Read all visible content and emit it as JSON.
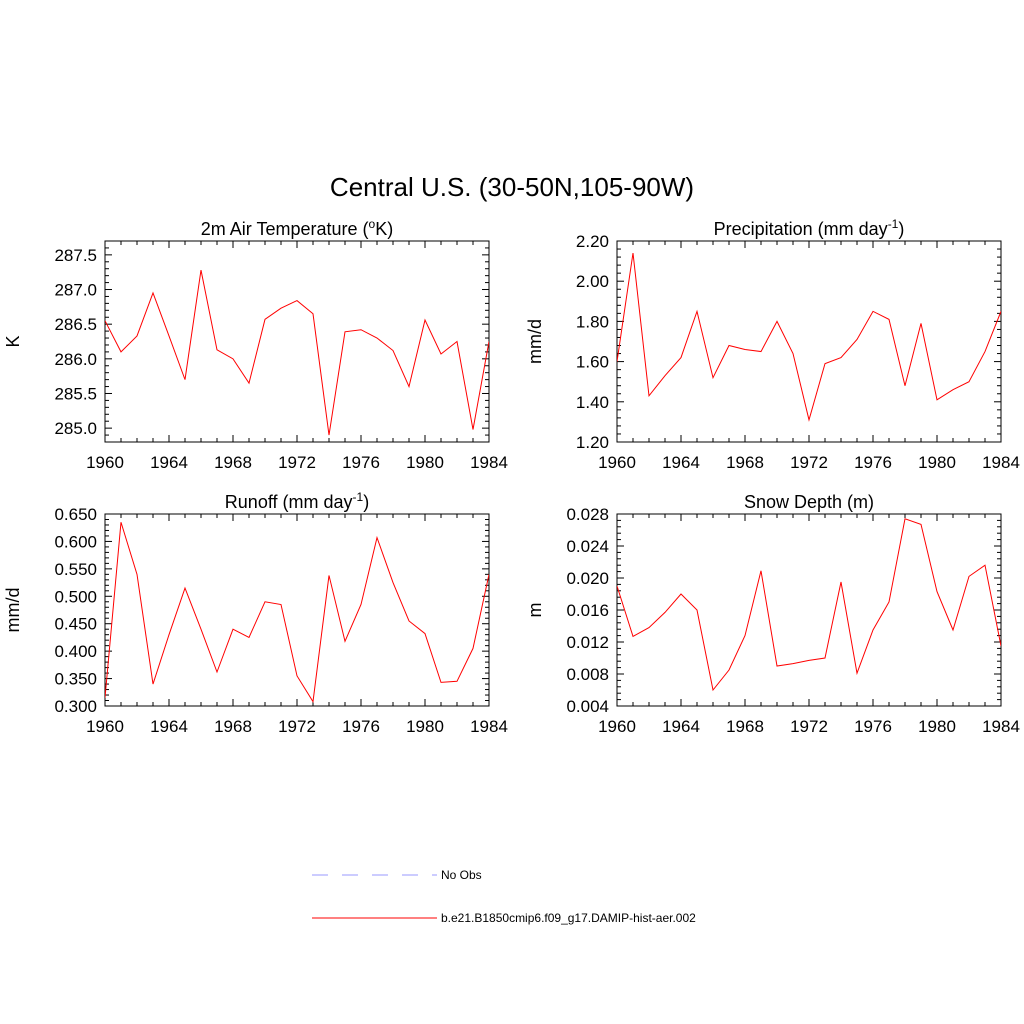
{
  "title": "Central U.S. (30-50N,105-90W)",
  "colors": {
    "model": "#ff0000",
    "obs": "#9999ff",
    "axis": "#000000"
  },
  "legend": [
    {
      "label": "No Obs",
      "color": "#9999ff",
      "dash": "dashed"
    },
    {
      "label": "b.e21.B1850cmip6.f09_g17.DAMIP-hist-aer.002",
      "color": "#ff0000",
      "dash": "solid"
    }
  ],
  "chart_data": [
    {
      "type": "line",
      "title": "2m Air Temperature (oK)",
      "title_parts": [
        "2m Air Temperature (",
        "o",
        "K)"
      ],
      "ylabel": "K",
      "xlim": [
        1960,
        1984
      ],
      "xticks": [
        "1960",
        "1964",
        "1968",
        "1972",
        "1976",
        "1980",
        "1984"
      ],
      "ylim": [
        284.8,
        287.7
      ],
      "yticks": [
        "285.0",
        "285.5",
        "286.0",
        "286.5",
        "287.0",
        "287.5"
      ],
      "grid": false,
      "x": [
        1960,
        1961,
        1962,
        1963,
        1964,
        1965,
        1966,
        1967,
        1968,
        1969,
        1970,
        1971,
        1972,
        1973,
        1974,
        1975,
        1976,
        1977,
        1978,
        1979,
        1980,
        1981,
        1982,
        1983,
        1984
      ],
      "series": [
        {
          "values": [
            286.55,
            286.1,
            286.33,
            286.95,
            286.33,
            285.7,
            287.28,
            286.13,
            286.0,
            285.65,
            286.57,
            286.73,
            286.84,
            286.65,
            284.9,
            286.39,
            286.42,
            286.3,
            286.12,
            285.6,
            286.56,
            286.07,
            286.25,
            284.98,
            286.25
          ]
        }
      ]
    },
    {
      "type": "line",
      "title": "Precipitation (mm day-1)",
      "title_parts": [
        "Precipitation (mm day",
        "-1",
        ")"
      ],
      "ylabel": "mm/d",
      "xlim": [
        1960,
        1984
      ],
      "xticks": [
        "1960",
        "1964",
        "1968",
        "1972",
        "1976",
        "1980",
        "1984"
      ],
      "ylim": [
        1.2,
        2.2
      ],
      "yticks": [
        "1.20",
        "1.40",
        "1.60",
        "1.80",
        "2.00",
        "2.20"
      ],
      "grid": false,
      "x": [
        1960,
        1961,
        1962,
        1963,
        1964,
        1965,
        1966,
        1967,
        1968,
        1969,
        1970,
        1971,
        1972,
        1973,
        1974,
        1975,
        1976,
        1977,
        1978,
        1979,
        1980,
        1981,
        1982,
        1983,
        1984
      ],
      "series": [
        {
          "values": [
            1.6,
            2.14,
            1.43,
            1.53,
            1.62,
            1.85,
            1.52,
            1.68,
            1.66,
            1.65,
            1.8,
            1.64,
            1.31,
            1.59,
            1.62,
            1.71,
            1.85,
            1.81,
            1.48,
            1.79,
            1.41,
            1.46,
            1.5,
            1.65,
            1.85
          ]
        }
      ]
    },
    {
      "type": "line",
      "title": "Runoff (mm day-1)",
      "title_parts": [
        "Runoff (mm day",
        "-1",
        ")"
      ],
      "ylabel": "mm/d",
      "xlim": [
        1960,
        1984
      ],
      "xticks": [
        "1960",
        "1964",
        "1968",
        "1972",
        "1976",
        "1980",
        "1984"
      ],
      "ylim": [
        0.3,
        0.65
      ],
      "yticks": [
        "0.300",
        "0.350",
        "0.400",
        "0.450",
        "0.500",
        "0.550",
        "0.600",
        "0.650"
      ],
      "grid": false,
      "x": [
        1960,
        1961,
        1962,
        1963,
        1964,
        1965,
        1966,
        1967,
        1968,
        1969,
        1970,
        1971,
        1972,
        1973,
        1974,
        1975,
        1976,
        1977,
        1978,
        1979,
        1980,
        1981,
        1982,
        1983,
        1984
      ],
      "series": [
        {
          "values": [
            0.315,
            0.635,
            0.54,
            0.34,
            0.43,
            0.515,
            0.44,
            0.362,
            0.44,
            0.425,
            0.49,
            0.485,
            0.355,
            0.308,
            0.538,
            0.418,
            0.485,
            0.607,
            0.525,
            0.455,
            0.432,
            0.343,
            0.345,
            0.405,
            0.54
          ]
        }
      ]
    },
    {
      "type": "line",
      "title": "Snow Depth (m)",
      "title_parts": [
        "Snow Depth (m)"
      ],
      "ylabel": "m",
      "xlim": [
        1960,
        1984
      ],
      "xticks": [
        "1960",
        "1964",
        "1968",
        "1972",
        "1976",
        "1980",
        "1984"
      ],
      "ylim": [
        0.004,
        0.028
      ],
      "yticks": [
        "0.004",
        "0.008",
        "0.012",
        "0.016",
        "0.020",
        "0.024",
        "0.028"
      ],
      "grid": false,
      "x": [
        1960,
        1961,
        1962,
        1963,
        1964,
        1965,
        1966,
        1967,
        1968,
        1969,
        1970,
        1971,
        1972,
        1973,
        1974,
        1975,
        1976,
        1977,
        1978,
        1979,
        1980,
        1981,
        1982,
        1983,
        1984
      ],
      "series": [
        {
          "values": [
            0.019,
            0.0127,
            0.0138,
            0.0157,
            0.018,
            0.016,
            0.006,
            0.0085,
            0.0128,
            0.0209,
            0.009,
            0.0093,
            0.0097,
            0.01,
            0.0195,
            0.0081,
            0.0135,
            0.017,
            0.0274,
            0.0267,
            0.0183,
            0.0135,
            0.0202,
            0.0216,
            0.0115
          ]
        }
      ]
    }
  ]
}
